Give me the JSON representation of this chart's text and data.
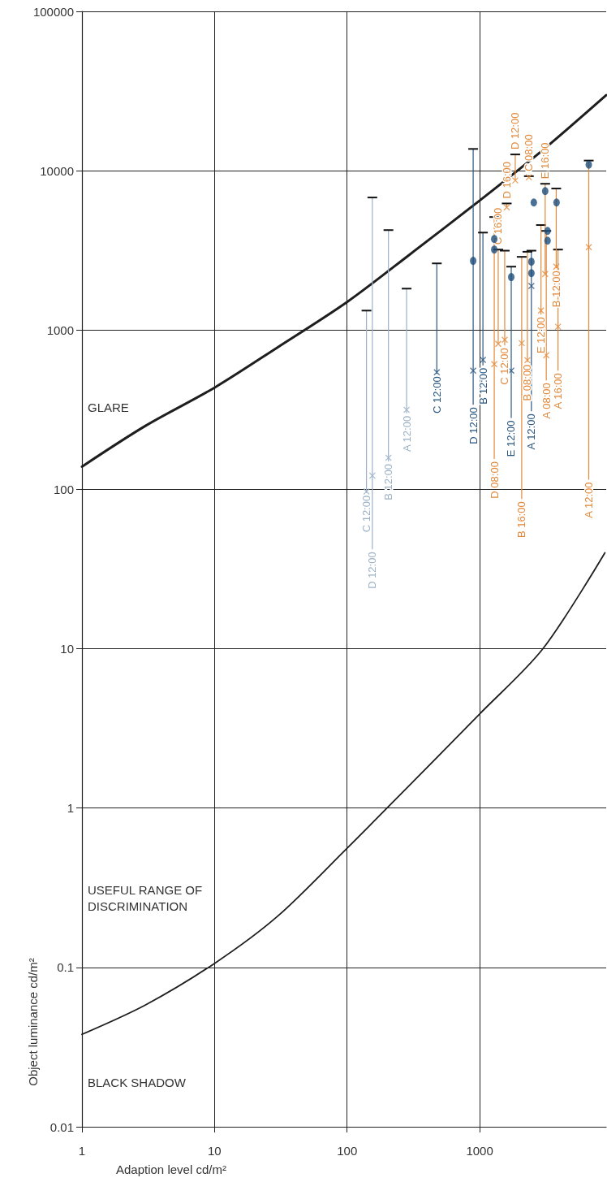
{
  "chart_data": {
    "type": "scatter",
    "xlabel": "Adaption level cd/m²",
    "ylabel": "Object luminance cd/m²",
    "log": "xy",
    "grid": true,
    "xlim": [
      1,
      9000
    ],
    "xticks": [
      1,
      10,
      100,
      1000
    ],
    "ylim": [
      0.01,
      100000
    ],
    "yticks": [
      0.01,
      0.1,
      1,
      10,
      100,
      1000,
      10000,
      100000
    ],
    "series": [
      {
        "color": "#9db2c7",
        "marker": "cross",
        "x": [
          140,
          155,
          205,
          281
        ],
        "values": [
          97,
          122,
          158,
          316
        ],
        "errors": [
          [
            95,
            1325
          ],
          [
            42,
            6790
          ],
          [
            150,
            4240
          ],
          [
            300,
            1820
          ]
        ]
      },
      {
        "color": "#2a5680",
        "marker": "cross",
        "x": [
          475,
          893,
          1058,
          1730,
          2455
        ],
        "values": [
          543,
          556,
          650,
          556,
          1890
        ],
        "errors": [
          [
            530,
            2620
          ],
          [
            340,
            13700
          ],
          [
            600,
            4090
          ],
          [
            281,
            2500
          ],
          [
            309,
            3150
          ]
        ]
      },
      {
        "color": "#e3893b",
        "marker": "cross",
        "x": [
          1288,
          1380,
          1545,
          1600,
          1855,
          2075,
          2290,
          2350,
          2900,
          3120,
          3180,
          3900,
          3780,
          6650
        ],
        "values": [
          611,
          819,
          869,
          5890,
          8690,
          828,
          647,
          9100,
          1326,
          2250,
          695,
          1050,
          2500,
          3310
        ],
        "errors": [
          [
            155,
            5120
          ],
          [
            819,
            3200
          ],
          [
            800,
            3150
          ],
          [
            5890,
            6230
          ],
          [
            8690,
            12650
          ],
          [
            87,
            2880
          ],
          [
            630,
            3100
          ],
          [
            9100,
            9240
          ],
          [
            1250,
            4560
          ],
          [
            2250,
            8280
          ],
          [
            483,
            4190
          ],
          [
            556,
            3200
          ],
          [
            2440,
            7730
          ],
          [
            115,
            11580
          ]
        ]
      },
      {
        "color": "#1d4d7a",
        "marker": "circle",
        "x": [
          893,
          1288,
          1288,
          1730,
          2455,
          2455,
          2560,
          3120,
          3250,
          3250,
          3800,
          6650
        ],
        "values": [
          2720,
          3730,
          3200,
          2150,
          2685,
          2275,
          6320,
          7450,
          4190,
          3640,
          6320,
          10920
        ]
      },
      {
        "type": "line",
        "color": "#1e1e1e",
        "marker": "none",
        "x": [
          1,
          3,
          10,
          30,
          100,
          300,
          1000,
          3000,
          9000
        ],
        "values": [
          139,
          250,
          435,
          780,
          1500,
          3000,
          6500,
          13500,
          29800
        ]
      },
      {
        "type": "line",
        "color": "#1e1e1e",
        "marker": "none",
        "x": [
          1,
          3,
          10,
          30,
          100,
          200,
          1000,
          3000,
          8800
        ],
        "values": [
          0.038,
          0.058,
          0.106,
          0.21,
          0.56,
          1,
          3.9,
          10,
          40
        ]
      }
    ],
    "annotations": [
      "GLARE",
      "USEFUL RANGE OF DISCRIMINATION",
      "BLACK SHADOW",
      {
        "text": "C 12:00",
        "x": 140,
        "y": 95
      },
      {
        "text": "D 12:00",
        "x": 155,
        "y": 42
      },
      {
        "text": "B 12:00",
        "x": 205,
        "y": 150
      },
      {
        "text": "A 12:00",
        "x": 281,
        "y": 300
      },
      {
        "text": "C 12:00",
        "x": 475,
        "y": 530
      },
      {
        "text": "D 12:00",
        "x": 893,
        "y": 340
      },
      {
        "text": "B 12:00",
        "x": 1058,
        "y": 600
      },
      {
        "text": "E 12:00",
        "x": 1730,
        "y": 281
      },
      {
        "text": "A 12:00",
        "x": 2455,
        "y": 309
      },
      {
        "text": "D 08:00",
        "x": 1288,
        "y": 155
      },
      {
        "text": "C 16:00",
        "x": 1380,
        "y": 3200
      },
      {
        "text": "C 12:00",
        "x": 1545,
        "y": 800
      },
      {
        "text": "D 16:00",
        "x": 1600,
        "y": 6230
      },
      {
        "text": "D 12:00",
        "x": 1855,
        "y": 12650
      },
      {
        "text": "B 16:00",
        "x": 2075,
        "y": 87
      },
      {
        "text": "B 08:00",
        "x": 2290,
        "y": 630
      },
      {
        "text": "C 08:00",
        "x": 2350,
        "y": 9240
      },
      {
        "text": "E 12:00",
        "x": 2900,
        "y": 1250
      },
      {
        "text": "E 16:00",
        "x": 3120,
        "y": 8280
      },
      {
        "text": "A 08:00",
        "x": 3180,
        "y": 483
      },
      {
        "text": "A 16:00",
        "x": 3900,
        "y": 556
      },
      {
        "text": "B 12:00",
        "x": 3780,
        "y": 2440
      },
      {
        "text": "A 12:00",
        "x": 6650,
        "y": 115
      }
    ]
  }
}
